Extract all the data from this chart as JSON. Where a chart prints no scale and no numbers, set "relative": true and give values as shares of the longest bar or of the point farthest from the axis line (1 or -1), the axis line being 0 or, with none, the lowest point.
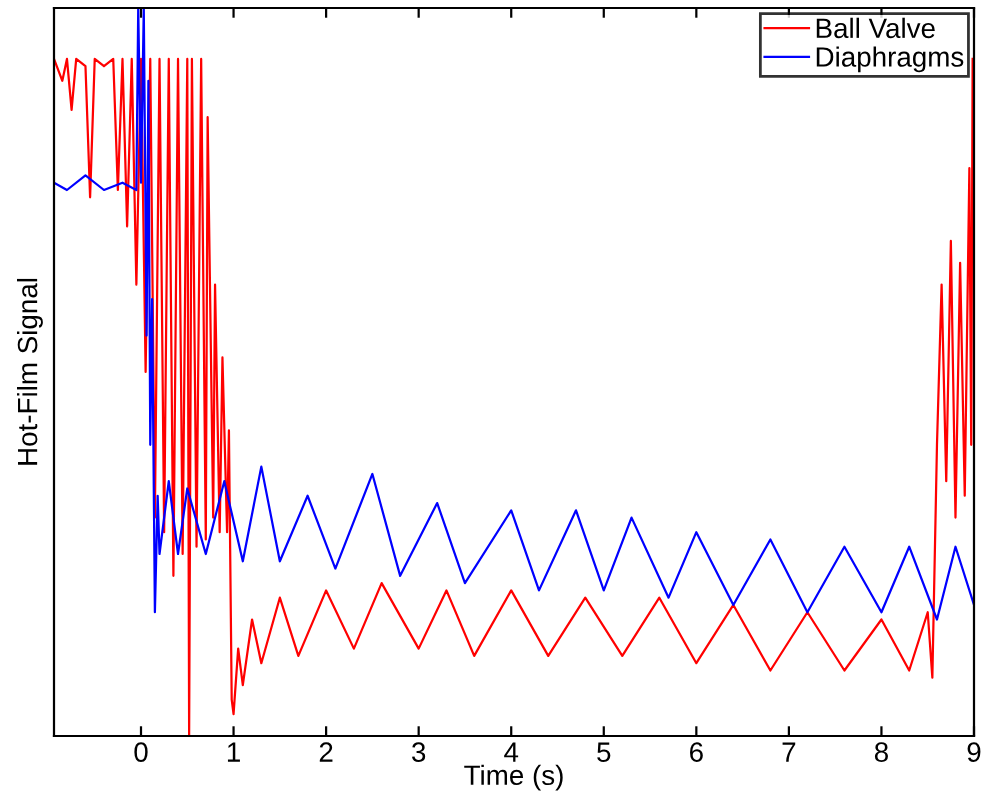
{
  "chart_data": {
    "type": "line",
    "xlabel": "Time (s)",
    "ylabel": "Hot-Film Signal",
    "relative": true,
    "xlim": [
      -0.94,
      9
    ],
    "xticks": [
      0,
      1,
      2,
      3,
      4,
      5,
      6,
      7,
      8,
      9
    ],
    "legend": "top right",
    "grid": false,
    "line_style": "solid",
    "series": [
      {
        "name": "Ball Valve",
        "color": "#ff0000",
        "x": [
          -0.94,
          -0.85,
          -0.8,
          -0.75,
          -0.7,
          -0.6,
          -0.55,
          -0.5,
          -0.4,
          -0.3,
          -0.25,
          -0.2,
          -0.15,
          -0.1,
          -0.05,
          0.0,
          0.05,
          0.1,
          0.15,
          0.2,
          0.25,
          0.3,
          0.35,
          0.4,
          0.45,
          0.5,
          0.52,
          0.55,
          0.6,
          0.65,
          0.7,
          0.72,
          0.78,
          0.8,
          0.85,
          0.88,
          0.93,
          0.95,
          0.98,
          1.0,
          1.05,
          1.1,
          1.2,
          1.3,
          1.5,
          1.7,
          2.0,
          2.3,
          2.6,
          3.0,
          3.3,
          3.6,
          4.0,
          4.4,
          4.8,
          5.2,
          5.6,
          6.0,
          6.4,
          6.8,
          7.2,
          7.6,
          8.0,
          8.3,
          8.5,
          8.55,
          8.6,
          8.65,
          8.7,
          8.75,
          8.8,
          8.85,
          8.9,
          8.95,
          8.97,
          8.985
        ],
        "values": [
          0.93,
          0.9,
          0.93,
          0.86,
          0.93,
          0.92,
          0.74,
          0.93,
          0.92,
          0.93,
          0.75,
          0.93,
          0.7,
          0.93,
          0.62,
          0.93,
          0.5,
          0.93,
          0.3,
          0.93,
          0.28,
          0.93,
          0.22,
          0.93,
          0.25,
          0.93,
          0.0,
          0.93,
          0.26,
          0.93,
          0.27,
          0.85,
          0.3,
          0.62,
          0.28,
          0.52,
          0.28,
          0.42,
          0.05,
          0.03,
          0.12,
          0.07,
          0.16,
          0.1,
          0.19,
          0.11,
          0.2,
          0.12,
          0.21,
          0.12,
          0.2,
          0.11,
          0.2,
          0.11,
          0.19,
          0.11,
          0.19,
          0.1,
          0.18,
          0.09,
          0.17,
          0.09,
          0.16,
          0.09,
          0.17,
          0.08,
          0.4,
          0.62,
          0.35,
          0.68,
          0.3,
          0.65,
          0.33,
          0.78,
          0.4,
          0.93
        ]
      },
      {
        "name": "Diaphragms",
        "color": "#0000ff",
        "x": [
          -0.94,
          -0.8,
          -0.6,
          -0.4,
          -0.2,
          -0.05,
          -0.03,
          0.0,
          0.03,
          0.06,
          0.08,
          0.1,
          0.12,
          0.15,
          0.18,
          0.2,
          0.3,
          0.4,
          0.5,
          0.7,
          0.9,
          1.1,
          1.3,
          1.5,
          1.8,
          2.1,
          2.5,
          2.8,
          3.2,
          3.5,
          4.0,
          4.3,
          4.7,
          5.0,
          5.3,
          5.7,
          6.0,
          6.4,
          6.8,
          7.2,
          7.6,
          8.0,
          8.3,
          8.6,
          8.8,
          9.0
        ],
        "values": [
          0.76,
          0.75,
          0.77,
          0.75,
          0.76,
          0.75,
          1.0,
          0.76,
          1.0,
          0.55,
          0.9,
          0.4,
          0.6,
          0.17,
          0.33,
          0.25,
          0.35,
          0.25,
          0.34,
          0.25,
          0.35,
          0.24,
          0.37,
          0.24,
          0.33,
          0.23,
          0.36,
          0.22,
          0.32,
          0.21,
          0.31,
          0.2,
          0.31,
          0.2,
          0.3,
          0.19,
          0.28,
          0.18,
          0.27,
          0.17,
          0.26,
          0.17,
          0.26,
          0.16,
          0.26,
          0.18
        ]
      }
    ]
  }
}
